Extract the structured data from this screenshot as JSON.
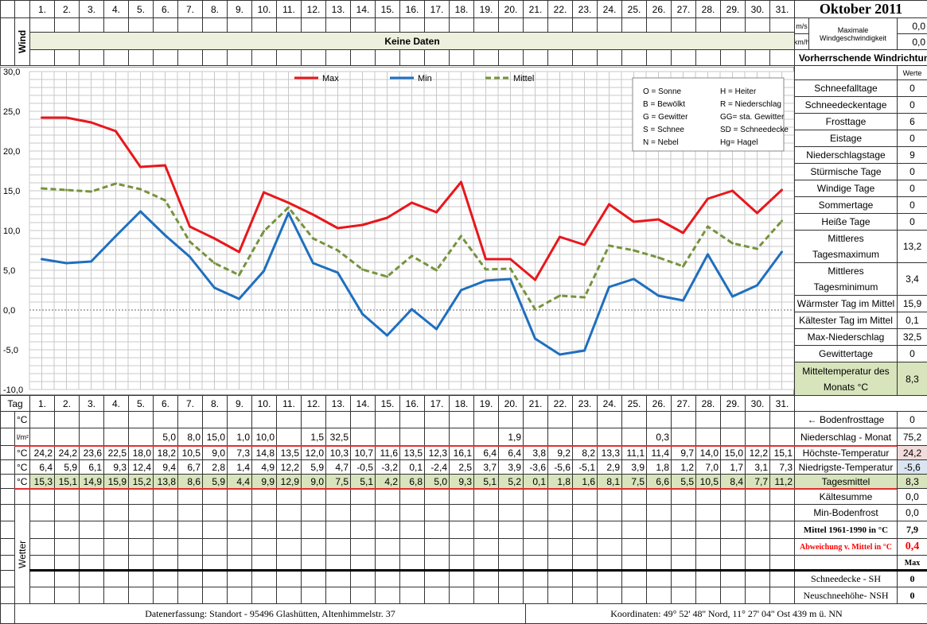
{
  "title": "Oktober 2011",
  "days": [
    "1.",
    "2.",
    "3.",
    "4.",
    "5.",
    "6.",
    "7.",
    "8.",
    "9.",
    "10.",
    "11.",
    "12.",
    "13.",
    "14.",
    "15.",
    "16.",
    "17.",
    "18.",
    "19.",
    "20.",
    "21.",
    "22.",
    "23.",
    "24.",
    "25.",
    "26.",
    "27.",
    "28.",
    "29.",
    "30.",
    "31."
  ],
  "wind": {
    "label": "Wind",
    "no_data": "Keine Daten",
    "unit_ms": "m/s",
    "unit_kmh": "km/h",
    "max_label_1": "Maximale",
    "max_label_2": "Windgeschwindigkeit",
    "max_ms": "0,0",
    "max_kmh": "0,0",
    "direction": "← Vorherrschende Windrichtung"
  },
  "stats_header": "Werte",
  "stats": [
    {
      "label": "Schneefalltage",
      "value": "0"
    },
    {
      "label": "Schneedeckentage",
      "value": "0"
    },
    {
      "label": "Frosttage",
      "value": "6"
    },
    {
      "label": "Eistage",
      "value": "0"
    },
    {
      "label": "Niederschlagstage",
      "value": "9"
    },
    {
      "label": "Stürmische Tage",
      "value": "0"
    },
    {
      "label": "Windige Tage",
      "value": "0"
    },
    {
      "label": "Sommertage",
      "value": "0"
    },
    {
      "label": "Heiße Tage",
      "value": "0"
    },
    {
      "label": "Mittleres Tagesmaximum",
      "value": "13,2"
    },
    {
      "label": "Mittleres Tagesminimum",
      "value": "3,4"
    },
    {
      "label": "Wärmster Tag im Mittel",
      "value": "15,9"
    },
    {
      "label": "Kältester Tag im Mittel",
      "value": "0,1"
    },
    {
      "label": "Max-Niederschlag",
      "value": "32,5"
    },
    {
      "label": "Gewittertage",
      "value": "0"
    },
    {
      "label": "Mitteltemperatur des Monats °C",
      "value": "8,3"
    }
  ],
  "weather_legend": [
    "O = Sonne",
    "H = Heiter",
    "B = Bewölkt",
    "R = Niederschlag",
    "G = Gewitter",
    "GG= sta. Gewitter",
    "S = Schnee",
    "SD = Schneedecke",
    "N = Nebel",
    "Hg= Hagel"
  ],
  "chart_data": {
    "type": "line",
    "x": [
      1,
      2,
      3,
      4,
      5,
      6,
      7,
      8,
      9,
      10,
      11,
      12,
      13,
      14,
      15,
      16,
      17,
      18,
      19,
      20,
      21,
      22,
      23,
      24,
      25,
      26,
      27,
      28,
      29,
      30,
      31
    ],
    "ylim": [
      -10,
      30
    ],
    "yticks": [
      "30,0",
      "25,0",
      "20,0",
      "15,0",
      "10,0",
      "5,0",
      "0,0",
      "-5,0",
      "-10,0"
    ],
    "grid": true,
    "legend_position": "top-center",
    "series": [
      {
        "name": "Max",
        "color": "#e8171c",
        "style": "solid",
        "values": [
          24.2,
          24.2,
          23.6,
          22.5,
          18.0,
          18.2,
          10.5,
          9.0,
          7.3,
          14.8,
          13.5,
          12.0,
          10.3,
          10.7,
          11.6,
          13.5,
          12.3,
          16.1,
          6.4,
          6.4,
          3.8,
          9.2,
          8.2,
          13.3,
          11.1,
          11.4,
          9.7,
          14.0,
          15.0,
          12.2,
          15.1
        ]
      },
      {
        "name": "Min",
        "color": "#1f6fbf",
        "style": "solid",
        "values": [
          6.4,
          5.9,
          6.1,
          9.3,
          12.4,
          9.4,
          6.7,
          2.8,
          1.4,
          4.9,
          12.2,
          5.9,
          4.7,
          -0.5,
          -3.2,
          0.1,
          -2.4,
          2.5,
          3.7,
          3.9,
          -3.6,
          -5.6,
          -5.1,
          2.9,
          3.9,
          1.8,
          1.2,
          7.0,
          1.7,
          3.1,
          7.3
        ]
      },
      {
        "name": "Mittel",
        "color": "#77933c",
        "style": "dashed",
        "values": [
          15.3,
          15.1,
          14.9,
          15.9,
          15.2,
          13.8,
          8.6,
          5.9,
          4.4,
          9.9,
          12.9,
          9.0,
          7.5,
          5.1,
          4.2,
          6.8,
          5.0,
          9.3,
          5.1,
          5.2,
          0.1,
          1.8,
          1.6,
          8.1,
          7.5,
          6.6,
          5.5,
          10.5,
          8.4,
          7.7,
          11.2
        ]
      }
    ]
  },
  "table": {
    "tag_label": "Tag",
    "units": [
      "°C",
      "l/m²",
      "°C",
      "°C",
      "°C"
    ],
    "precip": [
      "",
      "",
      "",
      "",
      "",
      "5,0",
      "8,0",
      "15,0",
      "1,0",
      "10,0",
      "",
      "1,5",
      "32,5",
      "",
      "",
      "",
      "",
      "",
      "",
      "1,9",
      "",
      "",
      "",
      "",
      "",
      "0,3",
      "",
      "",
      "",
      "",
      ""
    ],
    "max": [
      "24,2",
      "24,2",
      "23,6",
      "22,5",
      "18,0",
      "18,2",
      "10,5",
      "9,0",
      "7,3",
      "14,8",
      "13,5",
      "12,0",
      "10,3",
      "10,7",
      "11,6",
      "13,5",
      "12,3",
      "16,1",
      "6,4",
      "6,4",
      "3,8",
      "9,2",
      "8,2",
      "13,3",
      "11,1",
      "11,4",
      "9,7",
      "14,0",
      "15,0",
      "12,2",
      "15,1"
    ],
    "min": [
      "6,4",
      "5,9",
      "6,1",
      "9,3",
      "12,4",
      "9,4",
      "6,7",
      "2,8",
      "1,4",
      "4,9",
      "12,2",
      "5,9",
      "4,7",
      "-0,5",
      "-3,2",
      "0,1",
      "-2,4",
      "2,5",
      "3,7",
      "3,9",
      "-3,6",
      "-5,6",
      "-5,1",
      "2,9",
      "3,9",
      "1,8",
      "1,2",
      "7,0",
      "1,7",
      "3,1",
      "7,3"
    ],
    "mean": [
      "15,3",
      "15,1",
      "14,9",
      "15,9",
      "15,2",
      "13,8",
      "8,6",
      "5,9",
      "4,4",
      "9,9",
      "12,9",
      "9,0",
      "7,5",
      "5,1",
      "4,2",
      "6,8",
      "5,0",
      "9,3",
      "5,1",
      "5,2",
      "0,1",
      "1,8",
      "1,6",
      "8,1",
      "7,5",
      "6,6",
      "5,5",
      "10,5",
      "8,4",
      "7,7",
      "11,2"
    ],
    "side": [
      {
        "label": "← Bodenfrosttage",
        "value": "0"
      },
      {
        "label": "Niederschlag - Monat",
        "value": "75,2"
      },
      {
        "label": "Höchste-Temperatur",
        "value": "24,2"
      },
      {
        "label": "Niedrigste-Temperatur",
        "value": "-5,6"
      },
      {
        "label": "Tagesmittel",
        "value": "8,3"
      },
      {
        "label": "Kältesumme",
        "value": "0,0"
      },
      {
        "label": "Min-Bodenfrost",
        "value": "0,0"
      },
      {
        "label": "Mittel 1961-1990 in °C",
        "value": "7,9"
      },
      {
        "label": "Abweichung v. Mittel in °C",
        "value": "0,4"
      },
      {
        "label": "",
        "value": "Max"
      },
      {
        "label": "Schneedecke -  SH",
        "value": "0"
      },
      {
        "label": "Neuschneehöhe- NSH",
        "value": "0"
      }
    ]
  },
  "wetter_label": "Wetter",
  "footer": {
    "left": "Datenerfassung:  Standort -  95496  Glashütten, Altenhimmelstr. 37",
    "right": "Koordinaten:  49° 52' 48'' Nord,   11° 27' 04'' Ost   439 m ü. NN"
  }
}
